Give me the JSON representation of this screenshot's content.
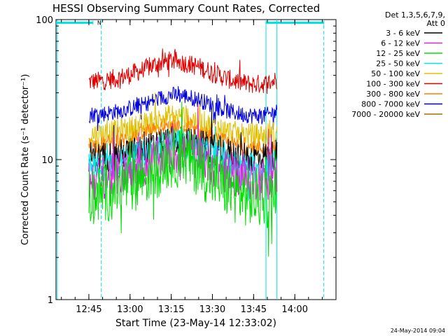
{
  "chart_data": {
    "type": "line",
    "title": "HESSI Observing Summary Count Rates, Corrected",
    "xlabel": "Start Time (23-May-14 12:33:02)",
    "ylabel": "Corrected Count Rate (s⁻¹ detector⁻¹)",
    "y_scale": "log",
    "ylim": [
      1,
      100
    ],
    "y_ticks": [
      1,
      10,
      100
    ],
    "y_tick_labels": [
      "1",
      "10",
      "100"
    ],
    "xlim": [
      "12:33:02",
      "14:15:00"
    ],
    "x_ticks": [
      "12:45",
      "13:00",
      "13:15",
      "13:30",
      "13:45",
      "14:00"
    ],
    "legend_header": [
      "Det 1,3,5,6,7,9,",
      "Att 0"
    ],
    "legend_placement": "right, outside plot",
    "grid": false,
    "flag_bars": [
      {
        "label": "N",
        "start": "12:33:02",
        "end": "12:46:30",
        "level": 95,
        "color": "#00e5e5"
      },
      {
        "label": "",
        "start": "13:49:30",
        "end": "14:10:30",
        "level": 95,
        "color": "#00e5e5"
      }
    ],
    "vertical_lines": [
      {
        "time": "12:33:30",
        "style": "solid",
        "color": "#00e5e5"
      },
      {
        "time": "12:49:30",
        "style": "dashed",
        "color": "#00e5e5"
      },
      {
        "time": "13:49:30",
        "style": "solid",
        "color": "#00e5e5"
      },
      {
        "time": "13:53:30",
        "style": "solid",
        "color": "#00e5e5"
      },
      {
        "time": "14:10:30",
        "style": "dashed",
        "color": "#00e5e5"
      }
    ],
    "data_window": [
      "12:45:00",
      "13:53:30"
    ],
    "series_profile_times": [
      "12:45",
      "12:50",
      "12:55",
      "13:00",
      "13:05",
      "13:10",
      "13:15",
      "13:20",
      "13:25",
      "13:30",
      "13:35",
      "13:40",
      "13:45",
      "13:50",
      "13:53"
    ],
    "series": [
      {
        "name": "3 - 6 keV",
        "color": "#000000",
        "values": [
          10.5,
          10.5,
          10.8,
          11.2,
          11.8,
          12.6,
          13.5,
          13.4,
          12.8,
          12.0,
          11.2,
          10.6,
          10.4,
          10.5,
          10.8
        ]
      },
      {
        "name": "6 - 12 keV",
        "color": "#e020e0",
        "values": [
          7.2,
          7.4,
          7.8,
          8.3,
          9.0,
          10.0,
          11.2,
          11.3,
          10.4,
          9.2,
          8.1,
          7.6,
          7.3,
          7.3,
          7.6
        ]
      },
      {
        "name": "12 - 25 keV",
        "color": "#00e000",
        "values": [
          5.5,
          5.8,
          6.2,
          6.8,
          7.6,
          8.8,
          10.2,
          10.3,
          9.0,
          7.4,
          6.3,
          5.6,
          5.3,
          5.3,
          5.6
        ]
      },
      {
        "name": "25 - 50 keV",
        "color": "#00e5e5",
        "values": [
          8.8,
          9.0,
          9.5,
          10.0,
          10.8,
          12.0,
          13.2,
          13.0,
          11.8,
          10.5,
          9.4,
          8.9,
          8.7,
          8.8,
          9.2
        ]
      },
      {
        "name": "50 - 100 keV",
        "color": "#e0c000",
        "values": [
          15.0,
          15.2,
          15.8,
          16.6,
          17.6,
          19.0,
          20.5,
          20.2,
          18.8,
          17.2,
          15.9,
          15.2,
          14.9,
          15.0,
          15.5
        ]
      },
      {
        "name": "100 - 300 keV",
        "color": "#e00000",
        "values": [
          36.0,
          36.5,
          38.0,
          40.5,
          44.0,
          48.5,
          51.0,
          49.0,
          46.0,
          42.0,
          38.0,
          35.5,
          34.5,
          35.0,
          37.0
        ]
      },
      {
        "name": "300 - 800 keV",
        "color": "#ff8000",
        "values": [
          12.5,
          12.8,
          13.4,
          14.2,
          15.2,
          16.3,
          17.0,
          16.6,
          15.6,
          14.4,
          13.2,
          12.4,
          12.0,
          12.1,
          12.6
        ]
      },
      {
        "name": "800 - 7000 keV",
        "color": "#0000e0",
        "values": [
          21.0,
          21.3,
          22.0,
          23.2,
          24.8,
          27.0,
          29.0,
          28.5,
          26.8,
          24.5,
          22.4,
          21.2,
          20.6,
          20.8,
          22.0
        ]
      },
      {
        "name": "7000 - 20000 keV",
        "color": "#a07000",
        "values": [
          null,
          null,
          null,
          null,
          null,
          null,
          null,
          null,
          null,
          null,
          null,
          null,
          null,
          null,
          null
        ]
      }
    ],
    "footer_date": "24-May-2014 09:04"
  }
}
